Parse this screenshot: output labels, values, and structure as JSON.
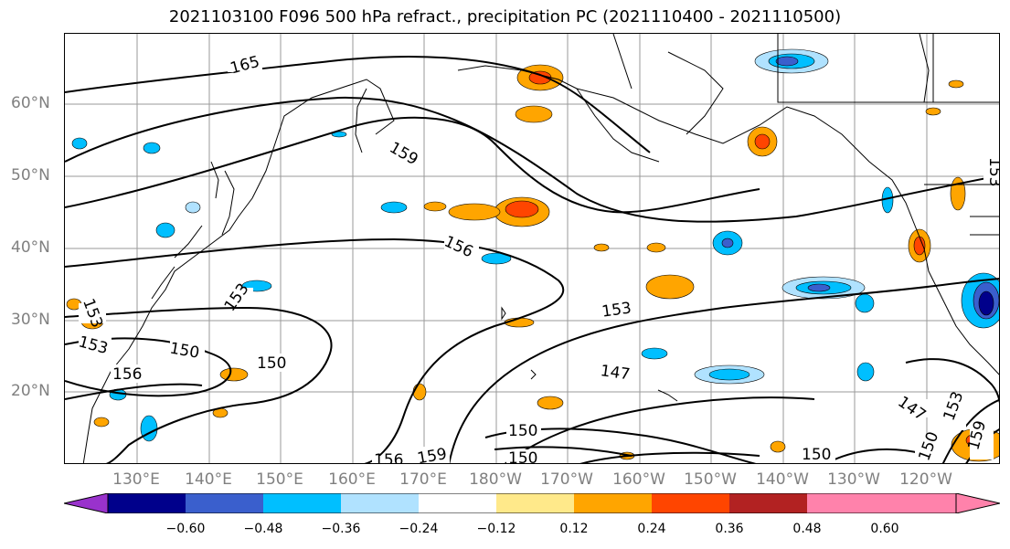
{
  "title": "2021103100 F096 500 hPa refract., precipitation PC (2021110400 - 2021110500)",
  "lat_labels": [
    "60°N",
    "50°N",
    "40°N",
    "30°N",
    "20°N"
  ],
  "lon_labels": [
    "130°E",
    "140°E",
    "150°E",
    "160°E",
    "170°E",
    "180°W",
    "170°W",
    "160°W",
    "150°W",
    "140°W",
    "130°W",
    "120°W"
  ],
  "contour_labels": [
    "165",
    "159",
    "156",
    "153",
    "153",
    "153",
    "150",
    "150",
    "156",
    "147",
    "153",
    "150",
    "150",
    "159",
    "156",
    "147",
    "153",
    "150",
    "150",
    "159",
    "153"
  ],
  "colorbar": {
    "ticks": [
      "−0.60",
      "−0.48",
      "−0.36",
      "−0.24",
      "−0.12",
      "0.12",
      "0.24",
      "0.36",
      "0.48",
      "0.60"
    ],
    "colors": [
      "#9932cc",
      "#00008b",
      "#3a5fcd",
      "#00bfff",
      "#b0e2ff",
      "#ffffff",
      "#ffe98a",
      "#ffa500",
      "#ff4500",
      "#b22222",
      "#ff82ab"
    ]
  }
}
